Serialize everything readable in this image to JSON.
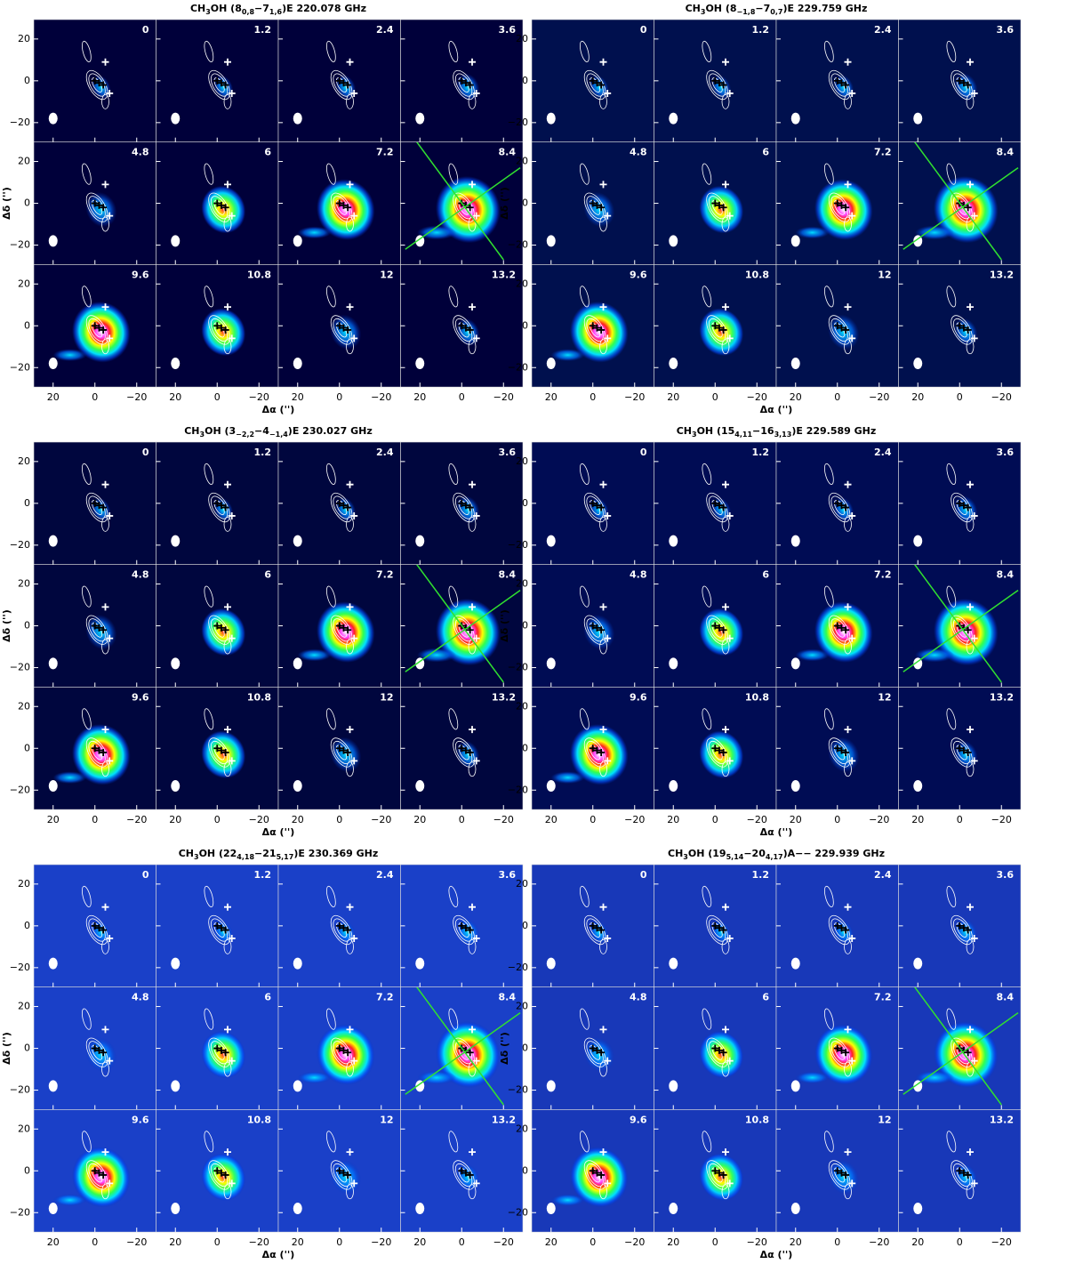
{
  "panels": [
    {
      "title": [
        "CH",
        "3",
        "OH (8",
        "0,8",
        "−7",
        "1,6",
        ")E 220.078 GHz"
      ]
    },
    {
      "title": [
        "CH",
        "3",
        "OH (8",
        "−1,8",
        "−7",
        "0,7",
        ")E 229.759 GHz"
      ]
    },
    {
      "title": [
        "CH",
        "3",
        "OH (3",
        "−2,2",
        "−4",
        "−1,4",
        ")E 230.027 GHz"
      ]
    },
    {
      "title": [
        "CH",
        "3",
        "OH (15",
        "4,11",
        "−16",
        "3,13",
        ")E 229.589 GHz"
      ]
    },
    {
      "title": [
        "CH",
        "3",
        "OH (22",
        "4,18",
        "−21",
        "5,17",
        ")E 230.369 GHz"
      ]
    },
    {
      "title": [
        "CH",
        "3",
        "OH (19",
        "5,14",
        "−20",
        "4,17",
        ")A−− 229.939 GHz"
      ]
    }
  ],
  "channels": [
    "0",
    "1.2",
    "2.4",
    "3.6",
    "4.8",
    "6",
    "7.2",
    "8.4",
    "9.6",
    "10.8",
    "12",
    "13.2"
  ],
  "x_ticks": [
    {
      "value": 20,
      "label": "20"
    },
    {
      "value": 0,
      "label": "0"
    },
    {
      "value": -20,
      "label": "−20"
    }
  ],
  "y_ticks": [
    {
      "value": 20,
      "label": "20"
    },
    {
      "value": 0,
      "label": "0"
    },
    {
      "value": -20,
      "label": "−20"
    }
  ],
  "x_label": "Δα ('')",
  "y_label": "Δδ ('')"
}
